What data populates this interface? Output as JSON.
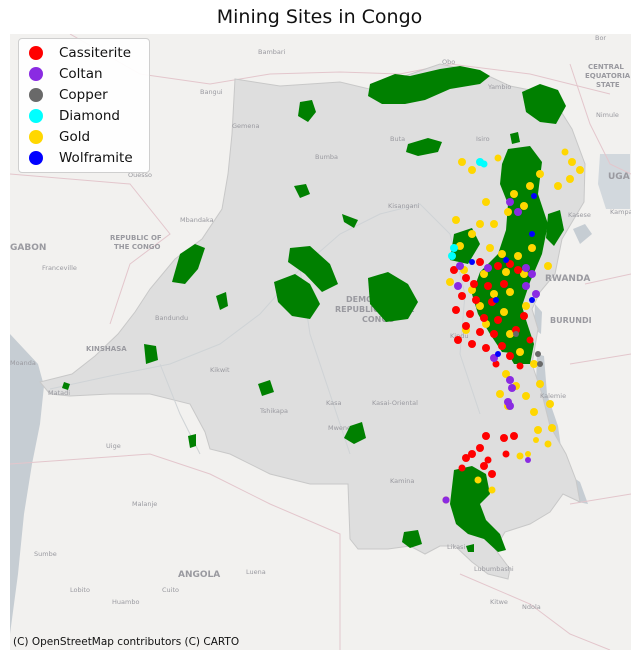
{
  "title": "Mining Sites in Congo",
  "attribution": "(C) OpenStreetMap contributors (C) CARTO",
  "legend": {
    "items": [
      {
        "label": "Cassiterite",
        "color": "#ff0000"
      },
      {
        "label": "Coltan",
        "color": "#8a2be2"
      },
      {
        "label": "Copper",
        "color": "#696969"
      },
      {
        "label": "Diamond",
        "color": "#00ffff"
      },
      {
        "label": "Gold",
        "color": "#ffd700"
      },
      {
        "label": "Wolframite",
        "color": "#0000ff"
      }
    ]
  },
  "colors": {
    "concession": "#008000",
    "drc_fill": "#dedede",
    "water": "#c6cdd3",
    "land": "#f2f1ef"
  },
  "map_labels": {
    "bambari": "Bambari",
    "obo": "Obo",
    "bor": "Bor",
    "bangui": "Bangui",
    "yambio": "Yambio",
    "car": "CENTRAL",
    "car2": "EQUATORIA",
    "car3": "STATE",
    "gemena": "Gemena",
    "buta": "Buta",
    "isiro": "Isiro",
    "nimule": "Nimule",
    "ouesso": "Ouesso",
    "bumba": "Bumba",
    "uganda": "UGA",
    "mbandaka": "Mbandaka",
    "kisangani": "Kisangani",
    "kasese": "Kasese",
    "kampala": "Kampa",
    "gabon": "GABON",
    "roc1": "REPUBLIC OF",
    "roc2": "THE CONGO",
    "franceville": "Franceville",
    "rwanda": "RWANDA",
    "drc1": "DEMO",
    "drc2": "REPUBLIC OF THE",
    "drc3": "CONGO",
    "kindu": "Kindu",
    "bandundu": "Bandundu",
    "burundi": "BURUNDI",
    "kinshasa": "KINSHASA",
    "kikwit": "Kikwit",
    "tshikapa": "Tshikapa",
    "kasa": "Kasa",
    "kasai": "Kasai-Oriental",
    "kalemie": "Kalemie",
    "uige": "Uige",
    "mwene": "Mwene-",
    "malanje": "Malanje",
    "kamina": "Kamina",
    "sumbe": "Sumbe",
    "likasi": "Likasi",
    "angola": "ANGOLA",
    "luena": "Luena",
    "lubumbashi": "Lubumbashi",
    "lobito": "Lobito",
    "huambo": "Huambo",
    "cuito": "Cuito",
    "kitwe": "Kitwe",
    "ndola": "Ndola",
    "moanda": "Moanda",
    "matadi": "Matadi"
  }
}
